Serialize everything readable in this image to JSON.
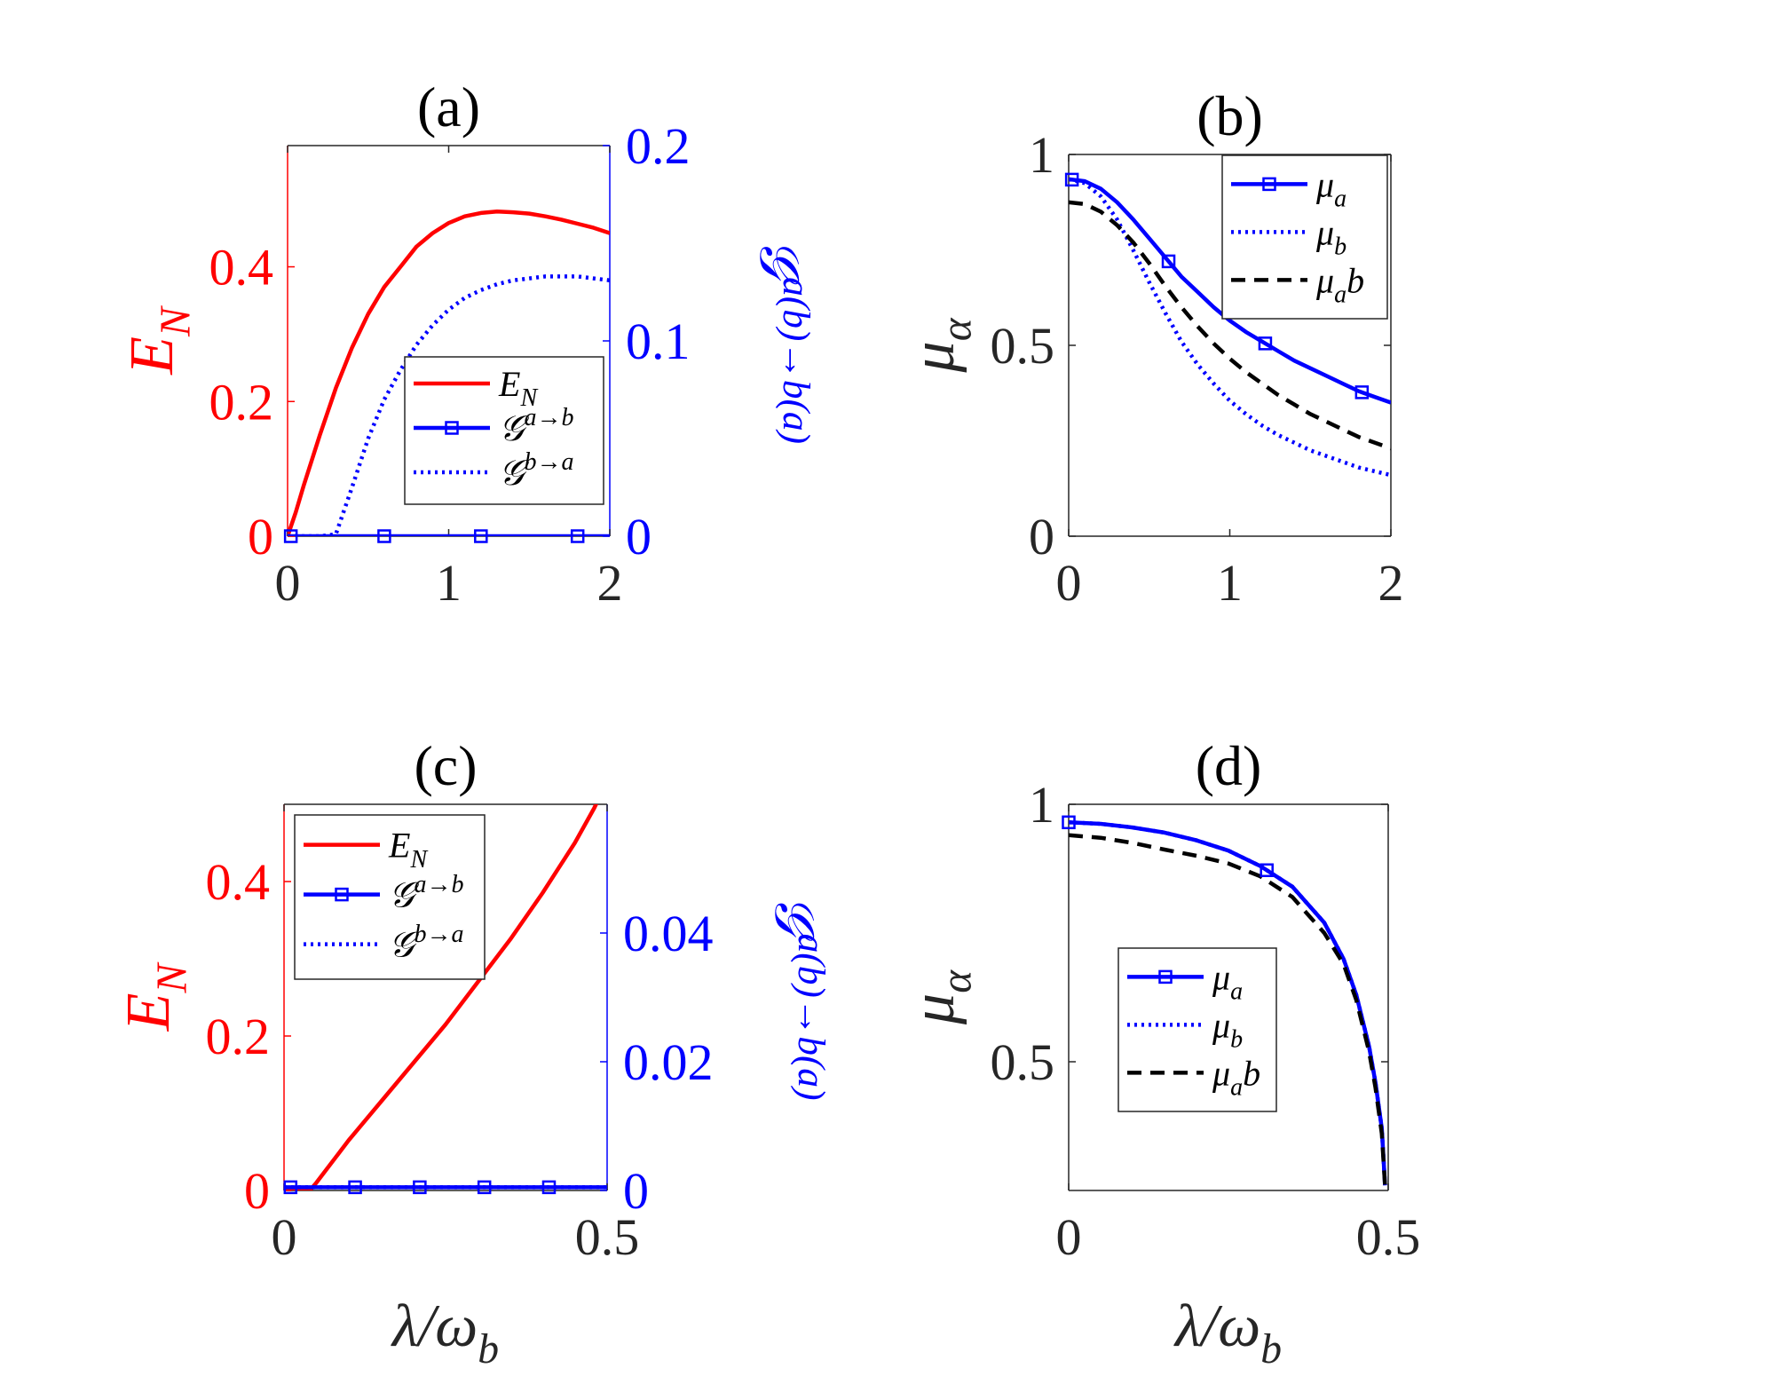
{
  "chart_data": [
    {
      "panel": "(a)",
      "type": "line",
      "title": "(a)",
      "xlabel": "",
      "ylabel_left": "E_N",
      "ylabel_right": "𝒢^{a(b)→b(a)}",
      "xlim": [
        0,
        2
      ],
      "ylim_left": [
        0,
        0.58
      ],
      "ylim_right": [
        0,
        0.2
      ],
      "xticks": [
        "0",
        "1",
        "2"
      ],
      "yticks_left": [
        "0",
        "0.2",
        "0.4"
      ],
      "yticks_right": [
        "0",
        "0.1",
        "0.2"
      ],
      "colors": {
        "left_axis": "#ff0000",
        "right_axis": "#0000ff"
      },
      "legend_position": "lower-right",
      "series": [
        {
          "name": "E_N",
          "axis": "left",
          "style": "solid",
          "color": "#ff0000",
          "x": [
            0,
            0.05,
            0.1,
            0.2,
            0.3,
            0.4,
            0.5,
            0.6,
            0.7,
            0.8,
            0.9,
            1.0,
            1.1,
            1.2,
            1.3,
            1.4,
            1.5,
            1.6,
            1.7,
            1.8,
            1.9,
            2.0
          ],
          "y": [
            0,
            0.035,
            0.075,
            0.15,
            0.22,
            0.28,
            0.33,
            0.37,
            0.4,
            0.43,
            0.45,
            0.465,
            0.475,
            0.48,
            0.482,
            0.481,
            0.479,
            0.475,
            0.47,
            0.464,
            0.458,
            0.45
          ]
        },
        {
          "name": "𝒢^{a→b}",
          "axis": "right",
          "style": "solid-square",
          "color": "#0000ff",
          "x": [
            0,
            0.5,
            1.0,
            1.5,
            2.0
          ],
          "y": [
            0,
            0,
            0,
            0,
            0
          ],
          "markers_x": [
            0.02,
            0.6,
            1.2,
            1.8
          ]
        },
        {
          "name": "𝒢^{b→a}",
          "axis": "right",
          "style": "dotted",
          "color": "#0000ff",
          "x": [
            0,
            0.2,
            0.3,
            0.4,
            0.5,
            0.6,
            0.7,
            0.8,
            0.9,
            1.0,
            1.1,
            1.2,
            1.3,
            1.4,
            1.5,
            1.6,
            1.7,
            1.8,
            1.9,
            2.0
          ],
          "y": [
            0,
            0,
            0.001,
            0.025,
            0.05,
            0.07,
            0.085,
            0.098,
            0.108,
            0.116,
            0.122,
            0.126,
            0.129,
            0.131,
            0.132,
            0.133,
            0.133,
            0.133,
            0.132,
            0.131
          ]
        }
      ],
      "legend": [
        "E_N",
        "𝒢^{a→b}",
        "𝒢^{b→a}"
      ]
    },
    {
      "panel": "(b)",
      "type": "line",
      "title": "(b)",
      "xlabel": "",
      "ylabel": "μ_α",
      "xlim": [
        0,
        2
      ],
      "ylim": [
        0,
        1
      ],
      "xticks": [
        "0",
        "1",
        "2"
      ],
      "yticks": [
        "0",
        "0.5",
        "1"
      ],
      "legend_position": "top-right",
      "series": [
        {
          "name": "μ_a",
          "style": "solid-square",
          "color": "#0000ff",
          "x": [
            0,
            0.1,
            0.2,
            0.3,
            0.4,
            0.5,
            0.6,
            0.7,
            0.8,
            0.9,
            1.0,
            1.1,
            1.2,
            1.3,
            1.4,
            1.5,
            1.6,
            1.7,
            1.8,
            1.9,
            2.0
          ],
          "y": [
            0.935,
            0.93,
            0.91,
            0.875,
            0.83,
            0.78,
            0.73,
            0.68,
            0.64,
            0.6,
            0.565,
            0.535,
            0.51,
            0.485,
            0.46,
            0.44,
            0.42,
            0.4,
            0.38,
            0.365,
            0.35
          ],
          "markers_x": [
            0.02,
            0.62,
            1.22,
            1.82
          ]
        },
        {
          "name": "μ_b",
          "style": "dotted",
          "color": "#0000ff",
          "x": [
            0,
            0.1,
            0.2,
            0.3,
            0.4,
            0.5,
            0.6,
            0.7,
            0.8,
            0.9,
            1.0,
            1.1,
            1.2,
            1.3,
            1.4,
            1.5,
            1.6,
            1.7,
            1.8,
            1.9,
            2.0
          ],
          "y": [
            0.935,
            0.925,
            0.89,
            0.83,
            0.75,
            0.665,
            0.585,
            0.51,
            0.45,
            0.4,
            0.355,
            0.32,
            0.29,
            0.265,
            0.245,
            0.225,
            0.21,
            0.195,
            0.18,
            0.17,
            0.16
          ]
        },
        {
          "name": "μ_ab",
          "style": "dashed",
          "color": "#000000",
          "x": [
            0,
            0.1,
            0.2,
            0.3,
            0.4,
            0.5,
            0.6,
            0.7,
            0.8,
            0.9,
            1.0,
            1.1,
            1.2,
            1.3,
            1.4,
            1.5,
            1.6,
            1.7,
            1.8,
            1.9,
            2.0
          ],
          "y": [
            0.875,
            0.87,
            0.85,
            0.815,
            0.77,
            0.715,
            0.655,
            0.6,
            0.55,
            0.505,
            0.465,
            0.43,
            0.4,
            0.37,
            0.345,
            0.32,
            0.3,
            0.28,
            0.26,
            0.245,
            0.23
          ]
        }
      ],
      "legend": [
        "μ_a",
        "μ_b",
        "μ_ab"
      ]
    },
    {
      "panel": "(c)",
      "type": "line",
      "title": "(c)",
      "xlabel": "λ/ω_b",
      "ylabel_left": "E_N",
      "ylabel_right": "𝒢^{a(b)→b(a)}",
      "xlim": [
        0,
        0.5
      ],
      "ylim_left": [
        0,
        0.5
      ],
      "ylim_right": [
        0,
        0.06
      ],
      "xticks": [
        "0",
        "0.5"
      ],
      "yticks_left": [
        "0",
        "0.2",
        "0.4"
      ],
      "yticks_right": [
        "0",
        "0.02",
        "0.04"
      ],
      "colors": {
        "left_axis": "#ff0000",
        "right_axis": "#0000ff"
      },
      "legend_position": "top-left",
      "series": [
        {
          "name": "E_N",
          "axis": "left",
          "style": "solid",
          "color": "#ff0000",
          "x": [
            0,
            0.04,
            0.05,
            0.1,
            0.15,
            0.2,
            0.25,
            0.3,
            0.35,
            0.4,
            0.45,
            0.48,
            0.5
          ],
          "y": [
            0,
            0,
            0.01,
            0.065,
            0.115,
            0.165,
            0.215,
            0.27,
            0.325,
            0.385,
            0.45,
            0.495,
            0.53
          ]
        },
        {
          "name": "𝒢^{a→b}",
          "axis": "right",
          "style": "solid-square",
          "color": "#0000ff",
          "x": [
            0,
            0.1,
            0.2,
            0.3,
            0.4,
            0.5
          ],
          "y": [
            0.0005,
            0.0005,
            0.0005,
            0.0005,
            0.0005,
            0.0005
          ],
          "markers_x": [
            0.01,
            0.11,
            0.21,
            0.31,
            0.41
          ]
        },
        {
          "name": "𝒢^{b→a}",
          "axis": "right",
          "style": "dotted",
          "color": "#0000ff",
          "x": [
            0,
            0.1,
            0.2,
            0.3,
            0.4,
            0.5
          ],
          "y": [
            0.0005,
            0.0005,
            0.0005,
            0.0005,
            0.0005,
            0.0005
          ]
        }
      ],
      "legend": [
        "E_N",
        "𝒢^{a→b}",
        "𝒢^{b→a}"
      ]
    },
    {
      "panel": "(d)",
      "type": "line",
      "title": "(d)",
      "xlabel": "λ/ω_b",
      "ylabel": "μ_α",
      "xlim": [
        0,
        0.5
      ],
      "ylim": [
        0.25,
        1
      ],
      "xticks": [
        "0",
        "0.5"
      ],
      "yticks": [
        "0.5",
        "1"
      ],
      "legend_position": "center-left",
      "series": [
        {
          "name": "μ_a",
          "style": "solid-square",
          "color": "#0000ff",
          "x": [
            0,
            0.05,
            0.1,
            0.15,
            0.2,
            0.25,
            0.3,
            0.35,
            0.4,
            0.43,
            0.45,
            0.47,
            0.48,
            0.49,
            0.495
          ],
          "y": [
            0.965,
            0.962,
            0.955,
            0.945,
            0.93,
            0.91,
            0.88,
            0.84,
            0.77,
            0.7,
            0.63,
            0.53,
            0.46,
            0.37,
            0.26
          ],
          "markers_x": [
            0.0,
            0.31
          ]
        },
        {
          "name": "μ_b",
          "style": "dotted",
          "color": "#0000ff",
          "x": [
            0,
            0.05,
            0.1,
            0.15,
            0.2,
            0.25,
            0.3,
            0.35,
            0.4,
            0.43,
            0.45,
            0.47,
            0.48,
            0.49,
            0.495
          ],
          "y": [
            0.965,
            0.962,
            0.955,
            0.945,
            0.93,
            0.91,
            0.88,
            0.84,
            0.77,
            0.7,
            0.63,
            0.53,
            0.46,
            0.37,
            0.26
          ]
        },
        {
          "name": "μ_ab",
          "style": "dashed",
          "color": "#000000",
          "x": [
            0,
            0.05,
            0.1,
            0.15,
            0.2,
            0.25,
            0.3,
            0.35,
            0.4,
            0.43,
            0.45,
            0.47,
            0.48,
            0.49,
            0.495
          ],
          "y": [
            0.94,
            0.935,
            0.925,
            0.912,
            0.9,
            0.885,
            0.86,
            0.82,
            0.75,
            0.69,
            0.62,
            0.52,
            0.45,
            0.36,
            0.26
          ]
        }
      ],
      "legend": [
        "μ_a",
        "μ_b",
        "μ_ab"
      ]
    }
  ]
}
